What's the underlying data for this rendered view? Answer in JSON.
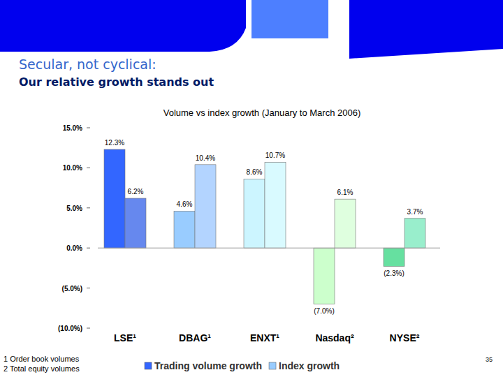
{
  "slide": {
    "heading": "Secular, not cyclical:",
    "subheading": "Our relative growth stands out",
    "footnotes": [
      "1 Order book volumes",
      "2 Total equity volumes"
    ],
    "page_number": 35
  },
  "chart_data": {
    "type": "bar",
    "title": "Volume vs index growth (January to March 2006)",
    "categories": [
      "LSE¹",
      "DBAG¹",
      "ENXT¹",
      "Nasdaq²",
      "NYSE²"
    ],
    "series": [
      {
        "name": "Trading volume growth",
        "color": "#3366ff",
        "colors": [
          "#3366ff",
          "#99ccff",
          "#ccf5ff",
          "#ccffcc",
          "#66e0a0"
        ],
        "values": [
          12.3,
          4.6,
          8.6,
          -7.0,
          -2.3
        ],
        "value_labels": [
          "12.3%",
          "4.6%",
          "8.6%",
          "(7.0%)",
          "(2.3%)"
        ]
      },
      {
        "name": "Index growth",
        "color": "#99ccff",
        "colors": [
          "#6688ee",
          "#b3d4ff",
          "#d9faff",
          "#dfffdf",
          "#99eecc"
        ],
        "values": [
          6.2,
          10.4,
          10.7,
          6.1,
          3.7
        ],
        "value_labels": [
          "6.2%",
          "10.4%",
          "10.7%",
          "6.1%",
          "3.7%"
        ]
      }
    ],
    "ylim": [
      -10,
      15
    ],
    "yticks": [
      {
        "value": 15,
        "label": "15.0%"
      },
      {
        "value": 10,
        "label": "10.0%"
      },
      {
        "value": 5,
        "label": "5.0%"
      },
      {
        "value": 0,
        "label": "0.0%"
      },
      {
        "value": -5,
        "label": "(5.0%)"
      },
      {
        "value": -10,
        "label": "(10.0%)"
      }
    ],
    "grid": false,
    "data_labels": true,
    "legend": "bottom"
  }
}
